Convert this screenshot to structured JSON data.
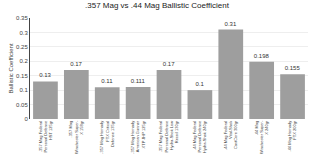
{
  "chart_data": {
    "type": "bar",
    "title": ".357 Mag vs .44 Mag Ballistic Coefficient",
    "ylabel": "Ballistic Coefficient",
    "categories": [
      ".357 Mag Federal\nPersonal Defense\nHST 125gr",
      ".357 Mag\nWinchester Super-\nX 158gr",
      ".357 Mag Hornady\nFTX Critical\nDefense 135gr",
      ".357 Mag Hornady\nAmerican Gunner\nXTP JHP 125gr",
      ".357 Mag Federal\nPersonal Defense\nHydra-Shok Low\nRecoil 130gr",
      ".44 Mag Federal\nPersonal Defense\nHydra-Shok 240gr",
      ".44 Mag Federal\nVital-Shok\nCastCore 300gr",
      ".44 Mag\nWinchester Super-\nX 240gr",
      ".44 Mag Hornady\nFTX 200gr"
    ],
    "values": [
      0.13,
      0.17,
      0.11,
      0.111,
      0.17,
      0.1,
      0.31,
      0.198,
      0.155
    ],
    "color": "#9e9e9e",
    "ylim": [
      0,
      0.35
    ],
    "yticks": [
      0,
      0.05,
      0.1,
      0.15,
      0.2,
      0.25,
      0.3,
      0.35
    ],
    "grid": true,
    "data_labels": true
  }
}
